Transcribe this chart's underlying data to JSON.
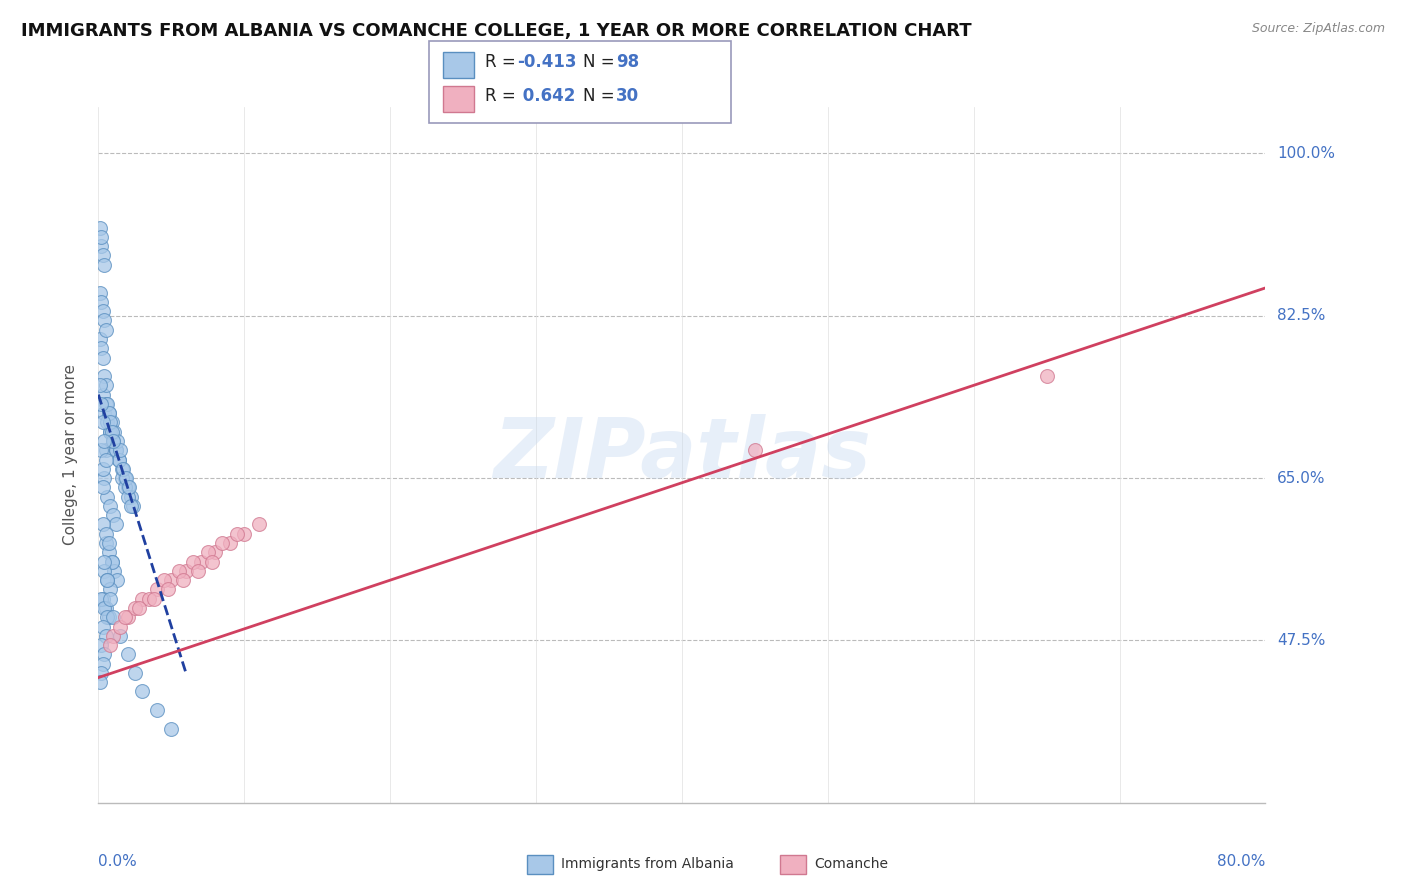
{
  "title": "IMMIGRANTS FROM ALBANIA VS COMANCHE COLLEGE, 1 YEAR OR MORE CORRELATION CHART",
  "source": "Source: ZipAtlas.com",
  "ylabel": "College, 1 year or more",
  "ytick_values": [
    0.475,
    0.65,
    0.825,
    1.0
  ],
  "ytick_labels": [
    "47.5%",
    "65.0%",
    "82.5%",
    "100.0%"
  ],
  "xlim": [
    0.0,
    0.8
  ],
  "ylim": [
    0.3,
    1.05
  ],
  "watermark": "ZIPatlas",
  "legend_blue_R": "-0.413",
  "legend_blue_N": "98",
  "legend_pink_R": "0.642",
  "legend_pink_N": "30",
  "blue_fill": "#a8c8e8",
  "pink_fill": "#f0b0c0",
  "blue_edge": "#5a8fc0",
  "pink_edge": "#d07890",
  "trend_blue_color": "#2040a0",
  "trend_pink_color": "#d04060",
  "blue_x": [
    0.005,
    0.008,
    0.01,
    0.012,
    0.014,
    0.016,
    0.018,
    0.02,
    0.022,
    0.024,
    0.004,
    0.006,
    0.008,
    0.01,
    0.012,
    0.014,
    0.016,
    0.018,
    0.02,
    0.022,
    0.003,
    0.005,
    0.007,
    0.009,
    0.011,
    0.013,
    0.015,
    0.017,
    0.019,
    0.021,
    0.004,
    0.006,
    0.008,
    0.01,
    0.012,
    0.005,
    0.007,
    0.009,
    0.011,
    0.013,
    0.003,
    0.005,
    0.007,
    0.009,
    0.004,
    0.006,
    0.008,
    0.003,
    0.005,
    0.007,
    0.002,
    0.004,
    0.006,
    0.003,
    0.005,
    0.002,
    0.004,
    0.003,
    0.002,
    0.001,
    0.001,
    0.002,
    0.003,
    0.004,
    0.005,
    0.006,
    0.007,
    0.008,
    0.009,
    0.01,
    0.001,
    0.002,
    0.003,
    0.004,
    0.005,
    0.002,
    0.003,
    0.004,
    0.001,
    0.002,
    0.05,
    0.04,
    0.03,
    0.025,
    0.02,
    0.015,
    0.01,
    0.008,
    0.006,
    0.004,
    0.002,
    0.003,
    0.001,
    0.002,
    0.003,
    0.004,
    0.005,
    0.003
  ],
  "blue_y": [
    0.68,
    0.7,
    0.69,
    0.68,
    0.67,
    0.66,
    0.65,
    0.64,
    0.63,
    0.62,
    0.72,
    0.71,
    0.7,
    0.69,
    0.68,
    0.67,
    0.65,
    0.64,
    0.63,
    0.62,
    0.74,
    0.73,
    0.72,
    0.71,
    0.7,
    0.69,
    0.68,
    0.66,
    0.65,
    0.64,
    0.65,
    0.63,
    0.62,
    0.61,
    0.6,
    0.58,
    0.57,
    0.56,
    0.55,
    0.54,
    0.6,
    0.59,
    0.58,
    0.56,
    0.55,
    0.54,
    0.53,
    0.52,
    0.51,
    0.5,
    0.52,
    0.51,
    0.5,
    0.49,
    0.48,
    0.47,
    0.46,
    0.45,
    0.44,
    0.43,
    0.8,
    0.79,
    0.78,
    0.76,
    0.75,
    0.73,
    0.72,
    0.71,
    0.7,
    0.69,
    0.85,
    0.84,
    0.83,
    0.82,
    0.81,
    0.9,
    0.89,
    0.88,
    0.92,
    0.91,
    0.38,
    0.4,
    0.42,
    0.44,
    0.46,
    0.48,
    0.5,
    0.52,
    0.54,
    0.56,
    0.68,
    0.66,
    0.75,
    0.73,
    0.71,
    0.69,
    0.67,
    0.64
  ],
  "pink_x": [
    0.01,
    0.02,
    0.03,
    0.04,
    0.05,
    0.06,
    0.07,
    0.08,
    0.09,
    0.1,
    0.015,
    0.025,
    0.035,
    0.045,
    0.055,
    0.065,
    0.075,
    0.085,
    0.095,
    0.11,
    0.008,
    0.018,
    0.028,
    0.038,
    0.048,
    0.058,
    0.068,
    0.078,
    0.45,
    0.65
  ],
  "pink_y": [
    0.48,
    0.5,
    0.52,
    0.53,
    0.54,
    0.55,
    0.56,
    0.57,
    0.58,
    0.59,
    0.49,
    0.51,
    0.52,
    0.54,
    0.55,
    0.56,
    0.57,
    0.58,
    0.59,
    0.6,
    0.47,
    0.5,
    0.51,
    0.52,
    0.53,
    0.54,
    0.55,
    0.56,
    0.68,
    0.76
  ],
  "blue_trend_x": [
    0.0,
    0.06
  ],
  "blue_trend_y": [
    0.74,
    0.44
  ],
  "pink_trend_x": [
    0.0,
    0.8
  ],
  "pink_trend_y": [
    0.435,
    0.855
  ]
}
